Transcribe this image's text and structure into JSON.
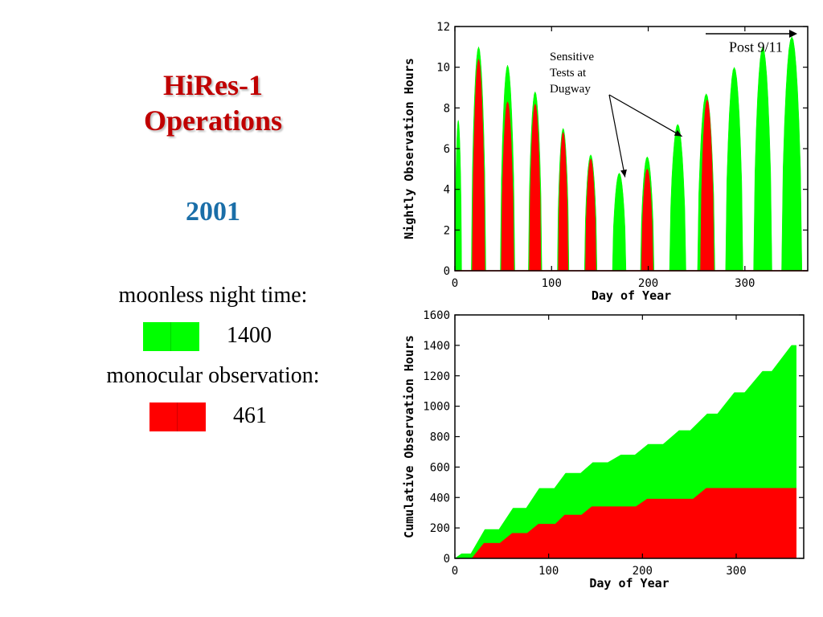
{
  "slide": {
    "title_line1": "HiRes-1",
    "title_line2": "Operations",
    "year": "2001"
  },
  "legend": {
    "moonless_label": "moonless night time:",
    "moonless_value": "1400",
    "moonless_color": "#00ff00",
    "mono_label": "monocular observation:",
    "mono_value": "461",
    "mono_color": "#ff0000"
  },
  "chart_data": [
    {
      "type": "area",
      "xlabel": "Day of Year",
      "ylabel": "Nightly Observation Hours",
      "xlim": [
        0,
        365
      ],
      "ylim": [
        0,
        12
      ],
      "xticks": [
        0,
        100,
        200,
        300
      ],
      "yticks": [
        0,
        2,
        4,
        6,
        8,
        10,
        12
      ],
      "annotations": [
        {
          "text": "Post 9/11",
          "x": 313,
          "y": 11.0
        },
        {
          "text_lines": [
            "Sensitive",
            "Tests at",
            "Dugway"
          ],
          "x": 105,
          "y": 10.0,
          "arrows_to": [
            {
              "x": 176,
              "y": 4.6
            },
            {
              "x": 235,
              "y": 6.6
            }
          ]
        }
      ],
      "series": [
        {
          "name": "moonless night time",
          "color": "#00ff00",
          "humps": [
            {
              "start": 0,
              "end": 7,
              "peak": 7.4
            },
            {
              "start": 17,
              "end": 32,
              "peak": 11.0
            },
            {
              "start": 47,
              "end": 62,
              "peak": 10.1
            },
            {
              "start": 76,
              "end": 90,
              "peak": 8.8
            },
            {
              "start": 106,
              "end": 118,
              "peak": 7.0
            },
            {
              "start": 134,
              "end": 147,
              "peak": 5.7
            },
            {
              "start": 163,
              "end": 177,
              "peak": 4.8
            },
            {
              "start": 192,
              "end": 206,
              "peak": 5.6
            },
            {
              "start": 222,
              "end": 239,
              "peak": 7.2
            },
            {
              "start": 251,
              "end": 269,
              "peak": 8.7
            },
            {
              "start": 280,
              "end": 298,
              "peak": 10.0
            },
            {
              "start": 309,
              "end": 328,
              "peak": 11.0
            },
            {
              "start": 338,
              "end": 359,
              "peak": 11.5
            }
          ]
        },
        {
          "name": "monocular observation",
          "color": "#ff0000",
          "humps": [
            {
              "start": 18,
              "end": 31,
              "peak": 10.4
            },
            {
              "start": 48,
              "end": 61,
              "peak": 8.3
            },
            {
              "start": 77,
              "end": 89,
              "peak": 8.2
            },
            {
              "start": 107,
              "end": 117,
              "peak": 6.8
            },
            {
              "start": 135,
              "end": 146,
              "peak": 5.5
            },
            {
              "start": 193,
              "end": 205,
              "peak": 5.0
            },
            {
              "start": 254,
              "end": 268,
              "peak": 8.4
            }
          ]
        }
      ]
    },
    {
      "type": "area",
      "xlabel": "Day of Year",
      "ylabel": "Cumulative Observation Hours",
      "xlim": [
        0,
        372
      ],
      "ylim": [
        0,
        1600
      ],
      "xticks": [
        0,
        100,
        200,
        300
      ],
      "yticks": [
        0,
        200,
        400,
        600,
        800,
        1000,
        1200,
        1400,
        1600
      ],
      "series": [
        {
          "name": "moonless night time",
          "color": "#00ff00",
          "x": [
            0,
            7,
            17,
            32,
            47,
            62,
            76,
            90,
            106,
            118,
            134,
            147,
            163,
            177,
            192,
            206,
            222,
            239,
            251,
            269,
            280,
            298,
            309,
            328,
            338,
            359,
            364
          ],
          "y": [
            0,
            30,
            30,
            190,
            190,
            330,
            330,
            460,
            460,
            560,
            560,
            630,
            630,
            680,
            680,
            750,
            750,
            840,
            840,
            950,
            950,
            1090,
            1090,
            1230,
            1230,
            1400,
            1400
          ]
        },
        {
          "name": "monocular observation",
          "color": "#ff0000",
          "x": [
            0,
            18,
            31,
            48,
            61,
            77,
            89,
            107,
            117,
            135,
            146,
            193,
            205,
            254,
            268,
            364
          ],
          "y": [
            0,
            0,
            100,
            100,
            165,
            165,
            225,
            225,
            285,
            285,
            340,
            340,
            390,
            390,
            461,
            461
          ]
        }
      ]
    }
  ]
}
